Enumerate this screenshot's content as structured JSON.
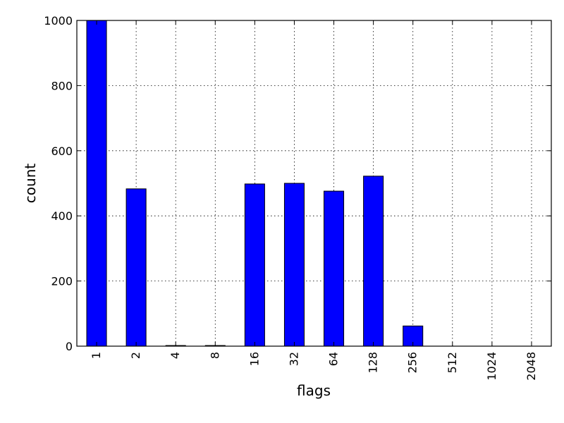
{
  "chart_data": {
    "type": "bar",
    "title": "",
    "xlabel": "flags",
    "ylabel": "count",
    "categories": [
      "1",
      "2",
      "4",
      "8",
      "16",
      "32",
      "64",
      "128",
      "256",
      "512",
      "1024",
      "2048"
    ],
    "values": [
      1000,
      483,
      2,
      2,
      498,
      500,
      476,
      522,
      62,
      0,
      0,
      0
    ],
    "ylim": [
      0,
      1000
    ],
    "yticks": [
      "0",
      "200",
      "400",
      "600",
      "800",
      "1000"
    ],
    "grid": true,
    "legend": "none",
    "bar_color": "#0000ff",
    "bar_edge_color": "#000000"
  }
}
